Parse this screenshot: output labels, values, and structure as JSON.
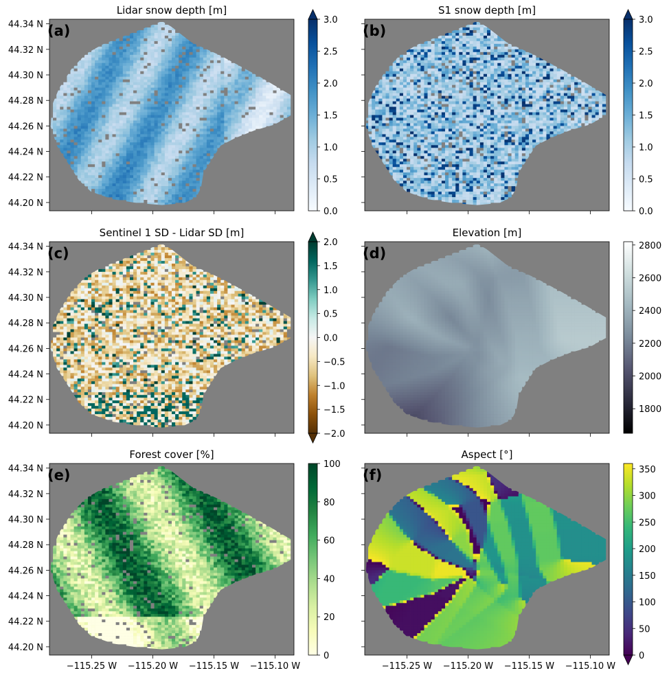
{
  "colors": {
    "nodata": "#808080",
    "Blues": [
      "#f7fbff",
      "#deebf7",
      "#c6dbef",
      "#9ecae1",
      "#6baed6",
      "#4292c6",
      "#2171b5",
      "#08519c",
      "#08306b"
    ],
    "BrBG": [
      "#543005",
      "#8c510a",
      "#bf812d",
      "#dfc27d",
      "#f6e8c3",
      "#f5f5f5",
      "#c7eae5",
      "#80cdc1",
      "#35978f",
      "#01665e",
      "#003c30"
    ],
    "bone": [
      "#000000",
      "#2b2b3c",
      "#555570",
      "#7a8a9a",
      "#a3b8c0",
      "#cfdede",
      "#ffffff"
    ],
    "YlGn": [
      "#ffffe5",
      "#f7fcb9",
      "#d9f0a3",
      "#addd8e",
      "#78c679",
      "#41ab5d",
      "#238443",
      "#006837",
      "#004529"
    ],
    "viridis": [
      "#440154",
      "#482878",
      "#3e4989",
      "#31688e",
      "#26828e",
      "#1f9e89",
      "#35b779",
      "#6ece58",
      "#b5de2b",
      "#fde725"
    ]
  },
  "chart_data": [
    {
      "panel": "(a)",
      "type": "heatmap",
      "title": "Lidar snow depth [m]",
      "colormap": "Blues",
      "clim": [
        0,
        3.0
      ],
      "extend": "max",
      "colorbar_ticks": [
        "0.0",
        "0.5",
        "1.0",
        "1.5",
        "2.0",
        "2.5",
        "3.0"
      ],
      "ylabel_ticks": [
        "44.34 N",
        "44.32 N",
        "44.30 N",
        "44.28 N",
        "44.26 N",
        "44.24 N",
        "44.22 N",
        "44.20 N"
      ],
      "xlabel_ticks": []
    },
    {
      "panel": "(b)",
      "type": "heatmap",
      "title": "S1 snow depth [m]",
      "colormap": "Blues",
      "clim": [
        0,
        3.0
      ],
      "extend": "max",
      "colorbar_ticks": [
        "0.0",
        "0.5",
        "1.0",
        "1.5",
        "2.0",
        "2.5",
        "3.0"
      ],
      "ylabel_ticks": [],
      "xlabel_ticks": []
    },
    {
      "panel": "(c)",
      "type": "heatmap",
      "title": "Sentinel 1 SD - Lidar SD [m]",
      "colormap": "BrBG",
      "clim": [
        -2.0,
        2.0
      ],
      "extend": "both",
      "colorbar_ticks": [
        "−2.0",
        "−1.5",
        "−1.0",
        "−0.5",
        "0.0",
        "0.5",
        "1.0",
        "1.5",
        "2.0"
      ],
      "ylabel_ticks": [
        "44.34 N",
        "44.32 N",
        "44.30 N",
        "44.28 N",
        "44.26 N",
        "44.24 N",
        "44.22 N",
        "44.20 N"
      ],
      "xlabel_ticks": []
    },
    {
      "panel": "(d)",
      "type": "heatmap",
      "title": "Elevation [m]",
      "colormap": "bone",
      "clim": [
        1650,
        2820
      ],
      "extend": "neither",
      "colorbar_ticks": [
        "1800",
        "2000",
        "2200",
        "2400",
        "2600",
        "2800"
      ],
      "ylabel_ticks": [],
      "xlabel_ticks": []
    },
    {
      "panel": "(e)",
      "type": "heatmap",
      "title": "Forest cover [%]",
      "colormap": "YlGn",
      "clim": [
        0,
        100
      ],
      "extend": "neither",
      "colorbar_ticks": [
        "0",
        "20",
        "40",
        "60",
        "80",
        "100"
      ],
      "ylabel_ticks": [
        "44.34 N",
        "44.32 N",
        "44.30 N",
        "44.28 N",
        "44.26 N",
        "44.24 N",
        "44.22 N",
        "44.20 N"
      ],
      "xlabel_ticks": [
        "−115.25 W",
        "−115.20 W",
        "−115.15 W",
        "−115.10 W"
      ]
    },
    {
      "panel": "(f)",
      "type": "heatmap",
      "title": "Aspect [°]",
      "colormap": "viridis",
      "clim": [
        0,
        360
      ],
      "extend": "min",
      "colorbar_ticks": [
        "0",
        "50",
        "100",
        "150",
        "200",
        "250",
        "300",
        "350"
      ],
      "ylabel_ticks": [],
      "xlabel_ticks": [
        "−115.25 W",
        "−115.20 W",
        "−115.15 W",
        "−115.10 W"
      ]
    }
  ]
}
